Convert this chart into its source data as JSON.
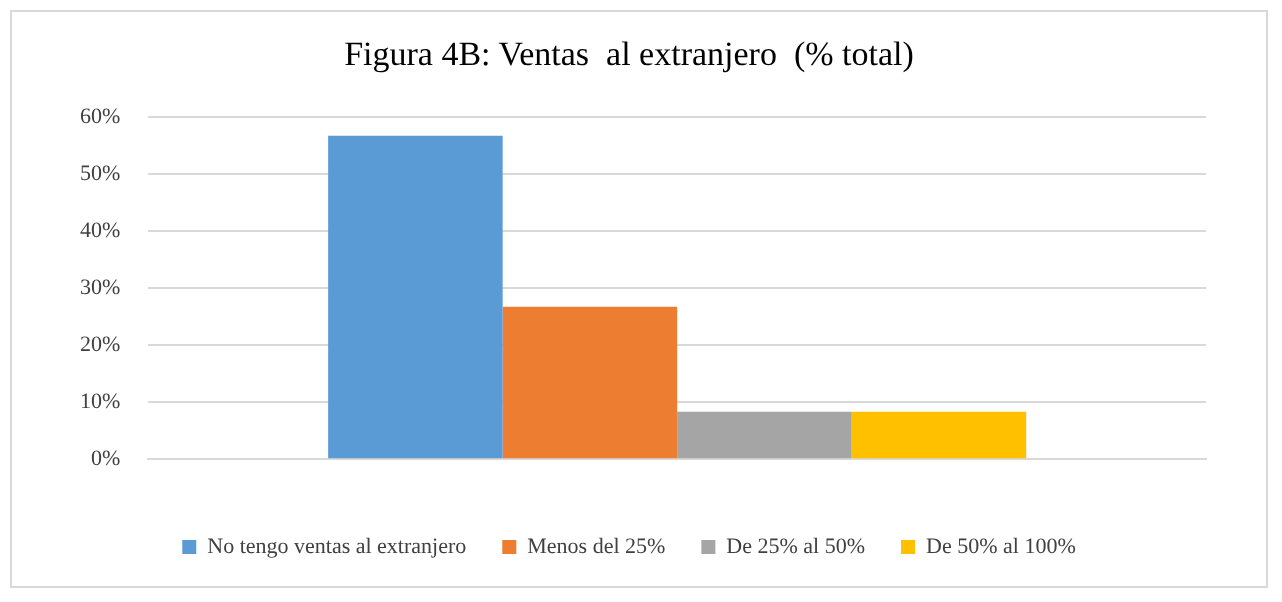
{
  "chart_data": {
    "type": "bar",
    "title": "Figura 4B: Ventas  al extranjero  (% total)",
    "categories": [
      null
    ],
    "series": [
      {
        "name": "No tengo ventas al extranjero",
        "color": "#5b9bd5",
        "values": [
          56.7
        ]
      },
      {
        "name": "Menos del 25%",
        "color": "#ed7d31",
        "values": [
          26.7
        ]
      },
      {
        "name": "De 25% al 50%",
        "color": "#a5a5a5",
        "values": [
          8.3
        ]
      },
      {
        "name": "De 50% al 100%",
        "color": "#ffc000",
        "values": [
          8.3
        ]
      }
    ],
    "ylim": [
      0,
      60
    ],
    "yticks": [
      {
        "value": 0,
        "label": "0%"
      },
      {
        "value": 10,
        "label": "10%"
      },
      {
        "value": 20,
        "label": "20%"
      },
      {
        "value": 30,
        "label": "30%"
      },
      {
        "value": 40,
        "label": "40%"
      },
      {
        "value": 50,
        "label": "50%"
      },
      {
        "value": 60,
        "label": "60%"
      }
    ],
    "grid": "y",
    "legend": "bottom"
  }
}
